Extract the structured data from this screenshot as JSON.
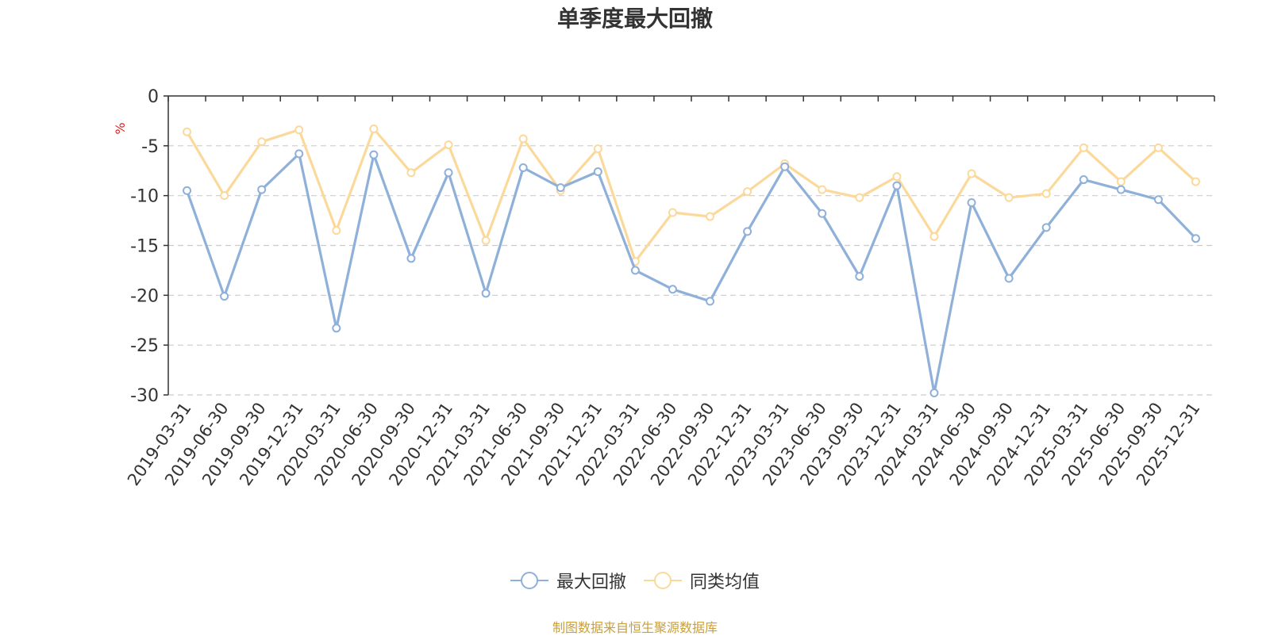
{
  "chart_data": {
    "type": "line",
    "title": "单季度最大回撤",
    "ylabel": "%",
    "ylim": [
      -30,
      0
    ],
    "yticks": [
      0,
      -5,
      -10,
      -15,
      -20,
      -25,
      -30
    ],
    "categories": [
      "2019-03-31",
      "2019-06-30",
      "2019-09-30",
      "2019-12-31",
      "2020-03-31",
      "2020-06-30",
      "2020-09-30",
      "2020-12-31",
      "2021-03-31",
      "2021-06-30",
      "2021-09-30",
      "2021-12-31",
      "2022-03-31",
      "2022-06-30",
      "2022-09-30",
      "2022-12-31",
      "2023-03-31",
      "2023-06-30",
      "2023-09-30",
      "2023-12-31",
      "2024-03-31",
      "2024-06-30",
      "2024-09-30",
      "2024-12-31",
      "2025-03-31",
      "2025-06-30",
      "2025-09-30",
      "2025-12-31"
    ],
    "series": [
      {
        "name": "最大回撤",
        "color": "#8eb0d9",
        "values": [
          -9.5,
          -20.1,
          -9.4,
          -5.8,
          -23.3,
          -5.9,
          -16.3,
          -7.7,
          -19.8,
          -7.2,
          -9.2,
          -7.6,
          -17.5,
          -19.4,
          -20.6,
          -13.6,
          -7.1,
          -11.8,
          -18.1,
          -9.0,
          -29.8,
          -10.7,
          -18.3,
          -13.2,
          -8.4,
          -9.4,
          -10.4,
          -14.3
        ]
      },
      {
        "name": "同类均值",
        "color": "#fbd99b",
        "values": [
          -3.6,
          -10.0,
          -4.6,
          -3.4,
          -13.5,
          -3.3,
          -7.7,
          -4.9,
          -14.5,
          -4.3,
          -9.5,
          -5.3,
          -16.6,
          -11.7,
          -12.1,
          -9.6,
          -6.8,
          -9.4,
          -10.2,
          -8.1,
          -14.1,
          -7.8,
          -10.2,
          -9.8,
          -5.2,
          -8.6,
          -5.2,
          -8.6
        ]
      }
    ],
    "grid": true,
    "legend_position": "bottom-center"
  },
  "source": "制图数据来自恒生聚源数据库"
}
